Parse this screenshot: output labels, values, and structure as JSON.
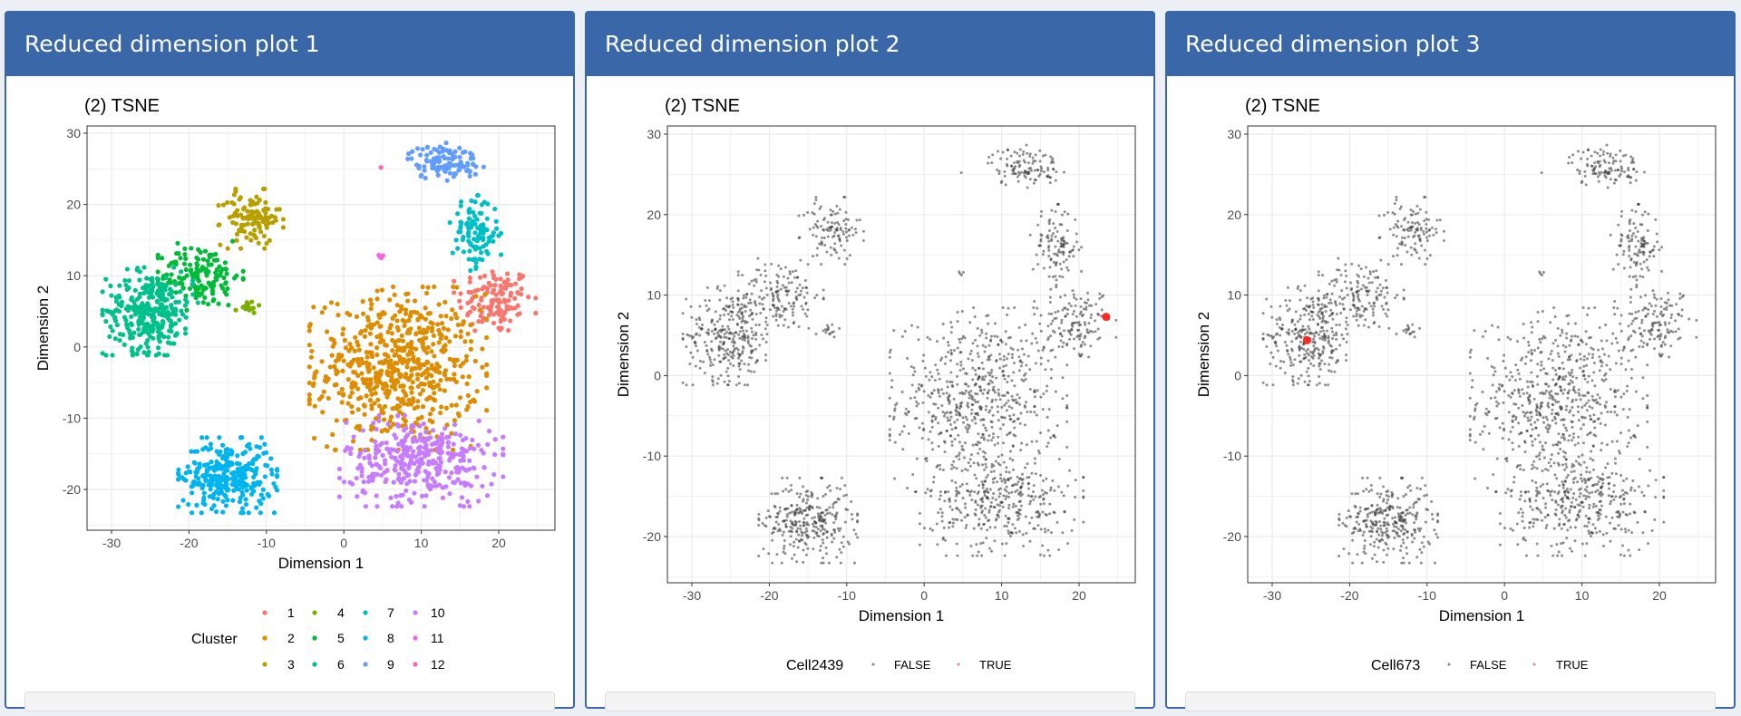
{
  "panels": [
    {
      "header": "Reduced dimension plot 1",
      "title": "(2) TSNE",
      "xlabel": "Dimension 1",
      "ylabel": "Dimension 2",
      "legend_title": "Cluster",
      "mode": "cluster"
    },
    {
      "header": "Reduced dimension plot 2",
      "title": "(2) TSNE",
      "xlabel": "Dimension 1",
      "ylabel": "Dimension 2",
      "legend_title": "Cell2439",
      "legend_labels": [
        "FALSE",
        "TRUE"
      ],
      "mode": "highlight",
      "highlight_point": [
        23.5,
        7.3
      ]
    },
    {
      "header": "Reduced dimension plot 3",
      "title": "(2) TSNE",
      "xlabel": "Dimension 1",
      "ylabel": "Dimension 2",
      "legend_title": "Cell673",
      "legend_labels": [
        "FALSE",
        "TRUE"
      ],
      "mode": "highlight",
      "highlight_point": [
        -25.5,
        4.4
      ]
    }
  ],
  "chart_data": {
    "type": "scatter",
    "title": "(2) TSNE",
    "xlabel": "Dimension 1",
    "ylabel": "Dimension 2",
    "xlim": [
      -33.2,
      27.3
    ],
    "ylim": [
      -25.7,
      31
    ],
    "x_ticks": [
      "-30",
      "-20",
      "-10",
      "0",
      "10",
      "20"
    ],
    "y_ticks": [
      "-20",
      "-10",
      "0",
      "10",
      "20",
      "30"
    ],
    "grid": true,
    "legend_position": "bottom",
    "false_color": "#333333",
    "true_color": "#ff2a1f",
    "clusters": [
      {
        "name": "1",
        "color": "#F8766D",
        "center": [
          19.5,
          6.5
        ],
        "spread": [
          2.4,
          2.4
        ],
        "count": 130
      },
      {
        "name": "2",
        "color": "#DE8C00",
        "center": [
          7,
          -3
        ],
        "spread": [
          5.2,
          5.2
        ],
        "count": 620
      },
      {
        "name": "3",
        "color": "#B79F00",
        "center": [
          -12,
          18
        ],
        "spread": [
          1.9,
          1.9
        ],
        "count": 110
      },
      {
        "name": "4",
        "color": "#7CAE00",
        "center": [
          -12.5,
          5.6
        ],
        "spread": [
          0.7,
          0.4
        ],
        "count": 15
      },
      {
        "name": "5",
        "color": "#00BA38",
        "center": [
          -18.5,
          10
        ],
        "spread": [
          2.5,
          2.2
        ],
        "count": 150
      },
      {
        "name": "6",
        "color": "#00C08B",
        "center": [
          -25,
          5
        ],
        "spread": [
          2.8,
          2.8
        ],
        "count": 300
      },
      {
        "name": "7",
        "color": "#00BFC4",
        "center": [
          17,
          16
        ],
        "spread": [
          1.5,
          2.4
        ],
        "count": 110
      },
      {
        "name": "8",
        "color": "#00B4F0",
        "center": [
          -15,
          -18
        ],
        "spread": [
          2.9,
          2.4
        ],
        "count": 300
      },
      {
        "name": "9",
        "color": "#619CFF",
        "center": [
          13,
          26
        ],
        "spread": [
          2.3,
          1.2
        ],
        "count": 110
      },
      {
        "name": "10",
        "color": "#C77CFF",
        "center": [
          10,
          -16
        ],
        "spread": [
          4.8,
          2.9
        ],
        "count": 350
      },
      {
        "name": "11",
        "color": "#F564E3",
        "center": [
          5,
          12.8
        ],
        "spread": [
          0.3,
          0.2
        ],
        "count": 4
      },
      {
        "name": "12",
        "color": "#FF64B0",
        "center": [
          4.8,
          25.2
        ],
        "spread": [
          0,
          0
        ],
        "count": 1
      }
    ]
  }
}
